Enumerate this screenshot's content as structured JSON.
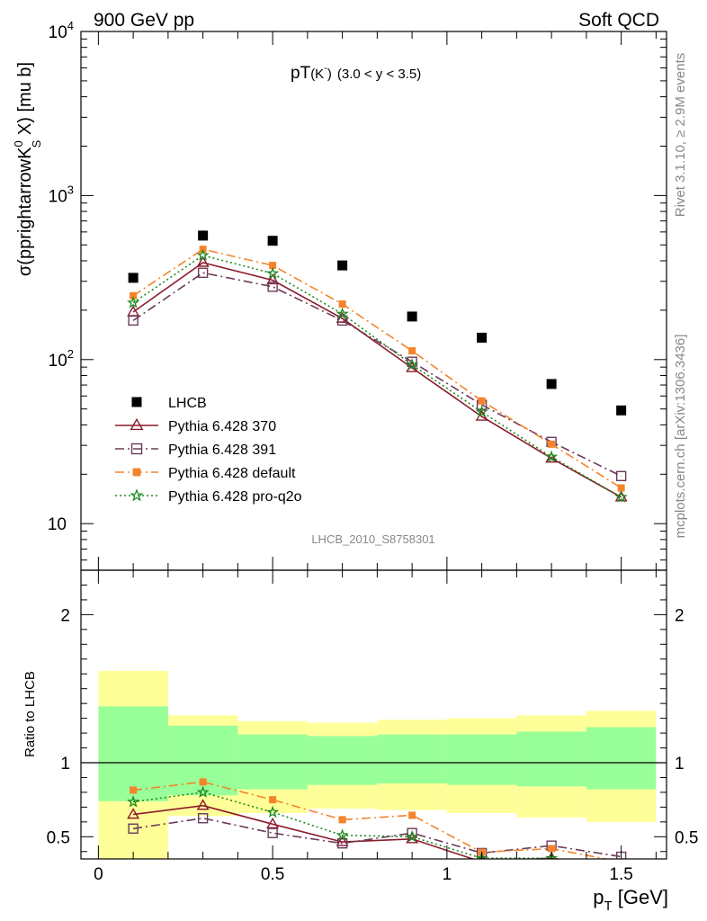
{
  "header": {
    "left": "900 GeV pp",
    "right": "Soft QCD"
  },
  "side_text": {
    "version": "Rivet 3.1.10, ≥ 2.9M events",
    "source": "mcplots.cern.ch [arXiv:1306.3436]"
  },
  "colors": {
    "data": "#000000",
    "p370": "#8b1a2b",
    "p391": "#6b3a5a",
    "default": "#f5832a",
    "proq2o": "#1e8a1e",
    "band_inner": "#99ff99",
    "band_outer": "#ffff99"
  },
  "chart_data": [
    {
      "type": "line",
      "title_main": "pT",
      "title_sub": "(K",
      "title_sup": "-",
      "title_tail": ")",
      "title_range": "(3.0 < y < 3.5)",
      "ylabel_pre": "σ(pprightarrowK",
      "ylabel_sup": "0",
      "ylabel_sub": "S",
      "ylabel_post": " X) [mu b]",
      "analysis_id": "LHCB_2010_S8758301",
      "yscale": "log",
      "xlim": [
        -0.05,
        1.63
      ],
      "ylim": [
        5.2,
        10000
      ],
      "ytick_labels": [
        "10",
        "10",
        "10",
        "10"
      ],
      "ytick_exponents": [
        "",
        "2",
        "3",
        "4"
      ],
      "x": [
        0.1,
        0.3,
        0.5,
        0.7,
        0.9,
        1.1,
        1.3,
        1.5
      ],
      "series": [
        {
          "name": "LHCB",
          "marker": "square",
          "values": [
            315,
            570,
            530,
            375,
            183,
            136,
            71,
            49
          ]
        },
        {
          "name": "Pythia 6.428 370",
          "marker": "triangle",
          "line": "solid",
          "values": [
            195,
            390,
            305,
            178,
            89,
            45,
            25,
            14.5
          ]
        },
        {
          "name": "Pythia 6.428 391",
          "marker": "open-square",
          "line": "dashdot",
          "values": [
            173,
            338,
            278,
            173,
            97,
            53,
            31.5,
            19.5
          ]
        },
        {
          "name": "Pythia 6.428 default",
          "marker": "filled-square",
          "line": "dashdot",
          "values": [
            245,
            470,
            375,
            218,
            113,
            56,
            30.5,
            16.5
          ]
        },
        {
          "name": "Pythia 6.428 pro-q2o",
          "marker": "star",
          "line": "dotted",
          "values": [
            222,
            432,
            335,
            190,
            93,
            48,
            25.5,
            14.5
          ]
        }
      ]
    },
    {
      "type": "line",
      "ylabel": "Ratio to LHCB",
      "xlabel_main": "p",
      "xlabel_sub": "T",
      "xlabel_tail": " [GeV]",
      "xlim": [
        -0.05,
        1.63
      ],
      "ylim": [
        0.35,
        2.3
      ],
      "xtick_labels": [
        "0",
        "0.5",
        "1",
        "1.5"
      ],
      "ytick_labels": [
        "0.5",
        "1",
        "2"
      ],
      "band_edges": [
        0.0,
        0.2,
        0.4,
        0.6,
        0.8,
        1.0,
        1.2,
        1.4,
        1.6
      ],
      "band_inner": [
        [
          0.74,
          1.38
        ],
        [
          0.78,
          1.25
        ],
        [
          0.82,
          1.19
        ],
        [
          0.85,
          1.18
        ],
        [
          0.86,
          1.19
        ],
        [
          0.85,
          1.19
        ],
        [
          0.84,
          1.21
        ],
        [
          0.82,
          1.24
        ]
      ],
      "band_outer": [
        [
          0.35,
          1.62
        ],
        [
          0.64,
          1.32
        ],
        [
          0.66,
          1.28
        ],
        [
          0.69,
          1.27
        ],
        [
          0.68,
          1.29
        ],
        [
          0.66,
          1.3
        ],
        [
          0.63,
          1.32
        ],
        [
          0.6,
          1.35
        ]
      ],
      "x": [
        0.1,
        0.3,
        0.5,
        0.7,
        0.9,
        1.1,
        1.3,
        1.5
      ],
      "series": [
        {
          "name": "Pythia 6.428 370",
          "values": [
            0.65,
            0.71,
            0.585,
            0.465,
            0.485,
            0.33,
            0.355,
            0.295
          ]
        },
        {
          "name": "Pythia 6.428 391",
          "values": [
            0.555,
            0.625,
            0.525,
            0.455,
            0.525,
            0.39,
            0.44,
            0.365
          ]
        },
        {
          "name": "Pythia 6.428 default",
          "values": [
            0.815,
            0.87,
            0.75,
            0.615,
            0.645,
            0.395,
            0.42,
            0.33
          ]
        },
        {
          "name": "Pythia 6.428 pro-q2o",
          "values": [
            0.735,
            0.8,
            0.665,
            0.51,
            0.5,
            0.355,
            0.355,
            0.295
          ]
        }
      ]
    }
  ]
}
